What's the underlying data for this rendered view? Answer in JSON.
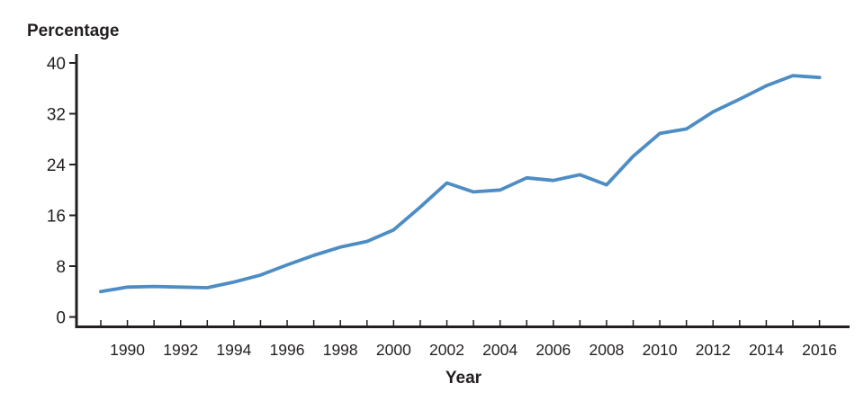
{
  "chart_data": {
    "type": "line",
    "title": "",
    "ylabel": "Percentage",
    "xlabel": "Year",
    "x": [
      1989,
      1990,
      1991,
      1992,
      1993,
      1994,
      1995,
      1996,
      1997,
      1998,
      1999,
      2000,
      2001,
      2002,
      2003,
      2004,
      2005,
      2006,
      2007,
      2008,
      2009,
      2010,
      2011,
      2012,
      2013,
      2014,
      2015,
      2016
    ],
    "values": [
      4.0,
      4.7,
      4.8,
      4.7,
      4.6,
      5.5,
      6.6,
      8.2,
      9.7,
      11.0,
      11.9,
      13.7,
      17.3,
      21.1,
      19.7,
      20.0,
      21.9,
      21.5,
      22.4,
      20.8,
      25.3,
      28.9,
      29.6,
      32.3,
      34.3,
      36.4,
      38.0,
      37.7
    ],
    "series_name": "percentage-by-year",
    "xlim": [
      1989,
      2016
    ],
    "ylim": [
      0,
      40
    ],
    "yticks": [
      0,
      8,
      16,
      24,
      32,
      40
    ],
    "ytick_labels": [
      "0",
      "8",
      "16",
      "24",
      "32",
      "40"
    ],
    "xticks_minor_every_year": true,
    "xticks_labeled": [
      1990,
      1992,
      1994,
      1996,
      1998,
      2000,
      2002,
      2004,
      2006,
      2008,
      2010,
      2012,
      2014,
      2016
    ],
    "grid": false,
    "legend": "none",
    "line_color": "#4d8dc4",
    "axis_color": "#231f20",
    "text_color": "#231f20",
    "background_color": "#ffffff"
  }
}
